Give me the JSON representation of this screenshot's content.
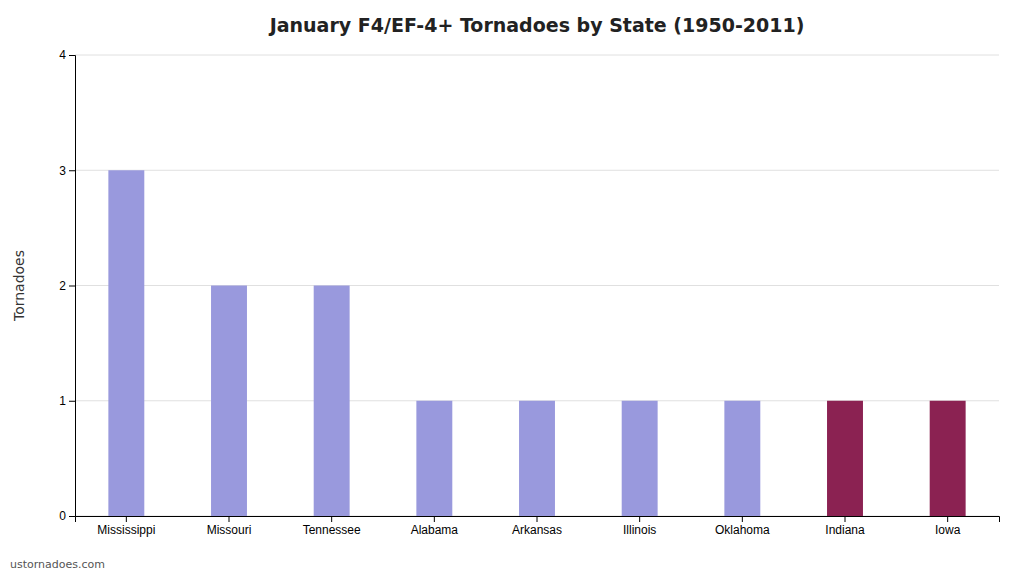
{
  "chart_data": {
    "type": "bar",
    "title": "January F4/EF-4+ Tornadoes by State (1950-2011)",
    "categories": [
      "Mississippi",
      "Missouri",
      "Tennessee",
      "Alabama",
      "Arkansas",
      "Illinois",
      "Oklahoma",
      "Indiana",
      "Iowa"
    ],
    "values": [
      3,
      2,
      2,
      1,
      1,
      1,
      1,
      1,
      1
    ],
    "colors": [
      "#9999dd",
      "#9999dd",
      "#9999dd",
      "#9999dd",
      "#9999dd",
      "#9999dd",
      "#9999dd",
      "#8b2252",
      "#8b2252"
    ],
    "ylabel": "Tornadoes",
    "ylim": [
      0,
      4
    ],
    "yticks": [
      0,
      1,
      2,
      3,
      4
    ],
    "grid": true,
    "annotations": [
      "ustornadoes.com"
    ]
  }
}
